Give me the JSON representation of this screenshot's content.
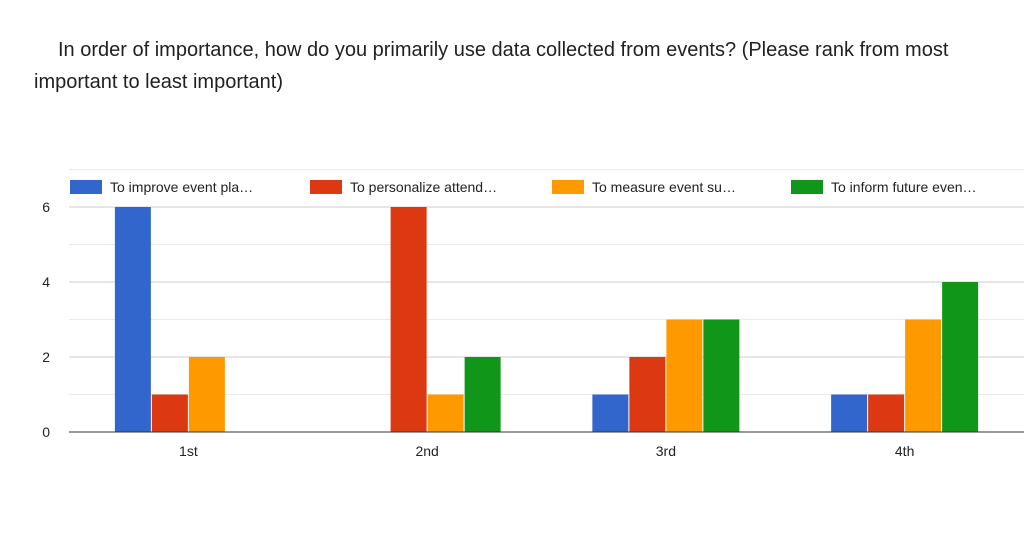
{
  "chart_data": {
    "type": "bar",
    "title": "In order of importance, how do you primarily use data collected from events? (Please rank from most important to least important)",
    "categories": [
      "1st",
      "2nd",
      "3rd",
      "4th"
    ],
    "series": [
      {
        "name": "To improve event pla…",
        "color": "#3366cc",
        "values": [
          6,
          0,
          1,
          1
        ]
      },
      {
        "name": "To personalize attend…",
        "color": "#dc3912",
        "values": [
          1,
          6,
          2,
          1
        ]
      },
      {
        "name": "To measure event su…",
        "color": "#ff9900",
        "values": [
          2,
          1,
          3,
          3
        ]
      },
      {
        "name": "To inform future even…",
        "color": "#109618",
        "values": [
          0,
          2,
          3,
          4
        ]
      }
    ],
    "ylim": [
      0,
      7
    ],
    "yticks": [
      0,
      2,
      4,
      6
    ],
    "grid": true,
    "legend_position": "top",
    "xlabel": "",
    "ylabel": ""
  }
}
